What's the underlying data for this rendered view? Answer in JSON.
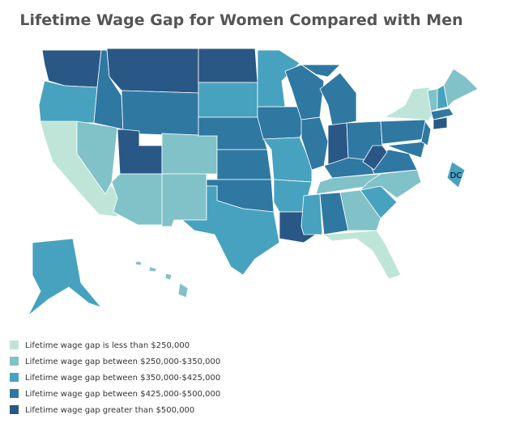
{
  "title": "Lifetime Wage Gap for Women Compared with Men",
  "map_labels": [
    "DC"
  ],
  "legend": [
    {
      "label": "Lifetime wage gap is less than $250,000",
      "color": "#bfe5d9"
    },
    {
      "label": "Lifetime wage gap between $250,000-$350,000",
      "color": "#80c2c8"
    },
    {
      "label": "Lifetime wage gap between $350,000-$425,000",
      "color": "#47a2bf"
    },
    {
      "label": "Lifetime wage gap between $425,000-$500,000",
      "color": "#2f78a2"
    },
    {
      "label": "Lifetime wage gap greater than $500,000",
      "color": "#2a5886"
    }
  ]
}
